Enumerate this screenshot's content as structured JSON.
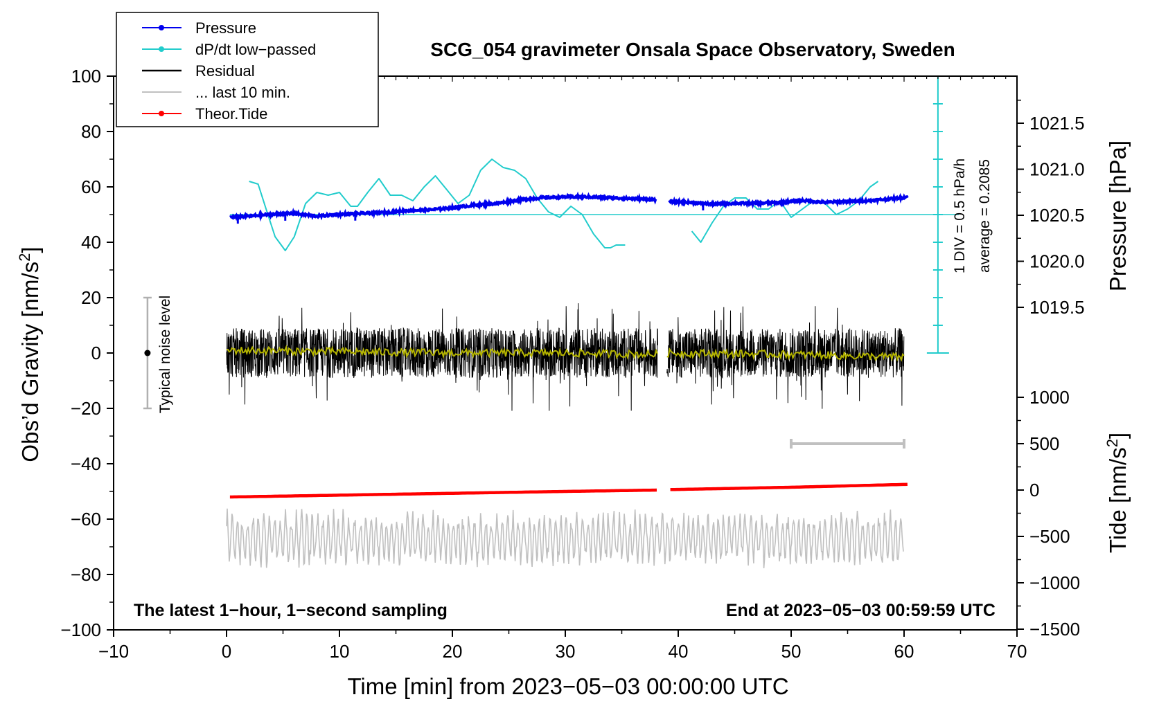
{
  "chart_data": {
    "type": "line",
    "title": "SCG_054 gravimeter Onsala Space Observatory, Sweden",
    "xlabel": "Time [min] from 2023−05−03 00:00:00 UTC",
    "ylabel_left": "Obs’d Gravity [nm/s",
    "ylabel_left_sup": "2",
    "ylabel_left_close": "]",
    "ylabel_right_pressure": "Pressure [hPa]",
    "ylabel_right_tide": "Tide [nm/s",
    "ylabel_right_tide_sup": "2",
    "ylabel_right_tide_close": "]",
    "xlim": [
      -10,
      70
    ],
    "ylim": [
      -100,
      100
    ],
    "x_ticks": [
      "−10",
      "0",
      "10",
      "20",
      "30",
      "40",
      "50",
      "60",
      "70"
    ],
    "x_tick_values": [
      -10,
      0,
      10,
      20,
      30,
      40,
      50,
      60,
      70
    ],
    "y_ticks": [
      "100",
      "80",
      "60",
      "40",
      "20",
      "0",
      "−20",
      "−40",
      "−60",
      "−80",
      "−100"
    ],
    "y_tick_values": [
      100,
      80,
      60,
      40,
      20,
      0,
      -20,
      -40,
      -60,
      -80,
      -100
    ],
    "pressure_axis": {
      "ticks": [
        "1021.5",
        "1021.0",
        "1020.5",
        "1020.0",
        "1019.5"
      ],
      "tick_values": [
        1021.5,
        1021.0,
        1020.5,
        1020.0,
        1019.5
      ],
      "reference": 1020.5
    },
    "tide_axis": {
      "ticks": [
        "1000",
        "500",
        "0",
        "−500",
        "−1000",
        "−1500"
      ],
      "tick_values": [
        1000,
        500,
        0,
        -500,
        -1000,
        -1500
      ]
    },
    "legend": [
      {
        "label": "Pressure",
        "color": "#0000ee",
        "marker": true
      },
      {
        "label": "dP/dt low−passed",
        "color": "#22cccc",
        "marker": true
      },
      {
        "label": "Residual",
        "color": "#000000",
        "marker": false
      },
      {
        "label": "... last 10 min.",
        "color": "#c0c0c0",
        "marker": false
      },
      {
        "label": "Theor.Tide",
        "color": "#ff0000",
        "marker": true
      }
    ],
    "dpdt_scale": {
      "div_label": "1 DIV = 0.5 hPa/h",
      "average_label": "average = 0.2085",
      "x": 63
    },
    "noise_bar": {
      "label": "Typical noise level",
      "x": -7,
      "center": 0,
      "half_range": 20
    },
    "bottom_left_note": "The latest 1−hour, 1−second sampling",
    "bottom_right_note": "End at 2023−05−03 00:59:59 UTC",
    "ten_min_bar": {
      "x_start": 50,
      "x_end": 60,
      "tide_value": 500
    },
    "gap": {
      "from": 38.2,
      "to": 39.0
    },
    "series": [
      {
        "name": "Pressure",
        "units": "hPa",
        "color": "#0000ee",
        "x": [
          0.3,
          2,
          4,
          6,
          8,
          10,
          12,
          14,
          16,
          18,
          20,
          22,
          24,
          26,
          28,
          30,
          32,
          34,
          36,
          38,
          39.2,
          41,
          43,
          45,
          47,
          49,
          51,
          53,
          55,
          57,
          59,
          60.3
        ],
        "y": [
          1020.48,
          1020.49,
          1020.51,
          1020.52,
          1020.49,
          1020.51,
          1020.52,
          1020.53,
          1020.55,
          1020.56,
          1020.58,
          1020.61,
          1020.63,
          1020.67,
          1020.69,
          1020.7,
          1020.7,
          1020.69,
          1020.68,
          1020.67,
          1020.65,
          1020.64,
          1020.62,
          1020.63,
          1020.63,
          1020.64,
          1020.66,
          1020.64,
          1020.65,
          1020.66,
          1020.68,
          1020.7
        ]
      },
      {
        "name": "dP/dt low−passed",
        "units": "nm/s2 plot scale",
        "color": "#22cccc",
        "x": [
          2,
          2.8,
          3.5,
          4.3,
          5.2,
          6,
          7,
          8,
          9,
          10,
          11,
          11.6,
          12.5,
          13.5,
          14.5,
          15.5,
          16.5,
          17.5,
          18.5,
          19.5,
          20.5,
          21.5,
          22.5,
          23.5,
          24.5,
          25.5,
          26.5,
          27.5,
          28.5,
          29.5,
          30.5,
          31.5,
          32.5,
          33.5,
          34,
          34.5,
          35.3
        ],
        "y": [
          62,
          61,
          52,
          42,
          37,
          42,
          54,
          58,
          57,
          58,
          53,
          53,
          58,
          63,
          57,
          57,
          55,
          60,
          64,
          59,
          54,
          57,
          66,
          70,
          67,
          66,
          63,
          56,
          51,
          49,
          53,
          50,
          43,
          38,
          38,
          39,
          39
        ],
        "x2": [
          41.2,
          42,
          43,
          44,
          45,
          46,
          47,
          48,
          49,
          50,
          51,
          52,
          53,
          54,
          55,
          56,
          57,
          57.7
        ],
        "y2": [
          44,
          40,
          47,
          53,
          56,
          56,
          52,
          52,
          55,
          49,
          52,
          55,
          54,
          50,
          52,
          55,
          60,
          62
        ]
      },
      {
        "name": "Residual",
        "units": "nm/s2",
        "color": "#000000",
        "x": [
          0,
          38.2,
          39.0,
          60
        ],
        "y": [
          0,
          0,
          0,
          0
        ],
        "amplitude": 9,
        "spike_range": [
          -21,
          18
        ]
      },
      {
        "name": "Residual smoothed",
        "units": "nm/s2",
        "color": "#b5b500",
        "x": [
          0,
          10,
          20,
          30,
          38.2,
          39.0,
          50,
          60
        ],
        "y": [
          1,
          0.5,
          0,
          0,
          -0.5,
          0,
          -0.5,
          -1.5
        ]
      },
      {
        "name": "... last 10 min.",
        "units": "nm/s2 plot scale",
        "color": "#c0c0c0",
        "x": [
          0,
          60
        ],
        "y": [
          -67,
          -67
        ],
        "amplitude": 10
      },
      {
        "name": "Theor.Tide",
        "units": "nm/s2",
        "color": "#ff0000",
        "x": [
          0.3,
          10,
          20,
          30,
          38.2,
          39.3,
          50,
          60.5
        ],
        "y": [
          -75,
          -55,
          -35,
          -15,
          0,
          5,
          30,
          62
        ]
      }
    ]
  }
}
